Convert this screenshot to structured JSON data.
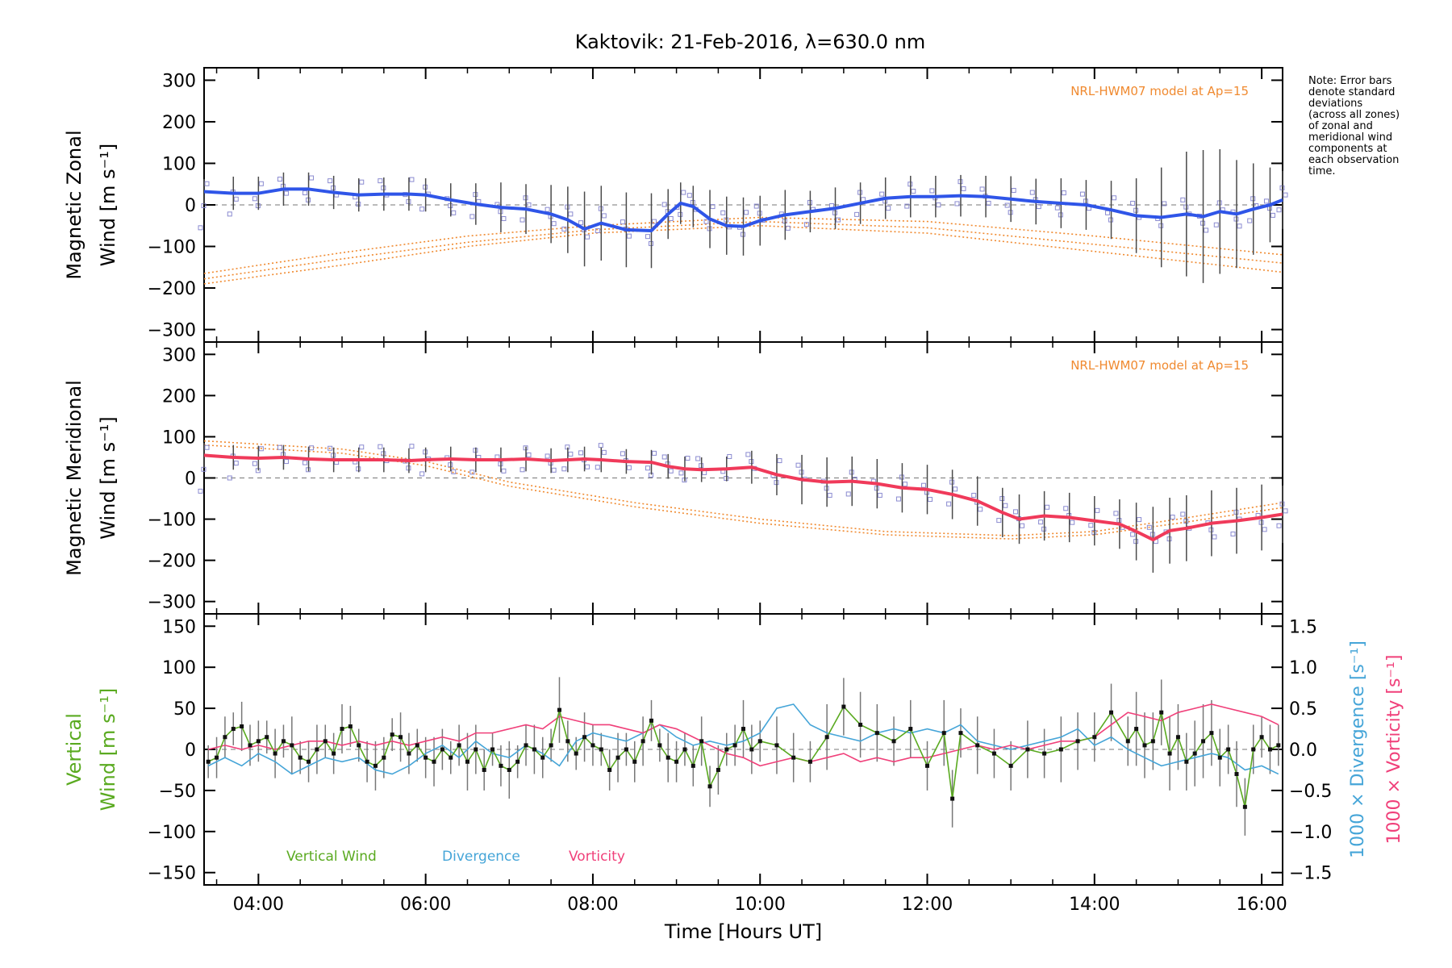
{
  "title": "Kaktovik: 21-Feb-2016, λ=630.0 nm",
  "note_lines": [
    "Note: Error bars",
    "denote standard",
    "deviations",
    "(across all zones)",
    "of zonal and",
    "meridional wind",
    "components at",
    "each observation",
    "time."
  ],
  "colors": {
    "zonal": "#2f55e8",
    "meridional": "#f03a5a",
    "vertical": "#5aaa20",
    "divergence": "#45a5d8",
    "vorticity": "#f0407a",
    "model": "#f08a30",
    "points": "#8a8ad0",
    "errorbar": "#4a4a4a"
  },
  "x_axis": {
    "label": "Time [Hours UT]",
    "range": [
      3.35,
      16.25
    ],
    "ticks": [
      4,
      6,
      8,
      10,
      12,
      14,
      16
    ],
    "tick_labels": [
      "04:00",
      "06:00",
      "08:00",
      "10:00",
      "12:00",
      "14:00",
      "16:00"
    ]
  },
  "chart_data": [
    {
      "type": "line",
      "panel": "zonal",
      "ylabel_line1": "Magnetic Zonal",
      "ylabel_line2": "Wind [m s⁻¹]",
      "model_label": "NRL-HWM07 model at Ap=15",
      "ylim": [
        -330,
        330
      ],
      "yticks": [
        300,
        200,
        100,
        0,
        -100,
        -200,
        -300
      ],
      "series": [
        {
          "x": [
            3.35,
            3.7,
            4.0,
            4.3,
            4.6,
            4.9,
            5.2,
            5.5,
            5.8,
            6.0,
            6.3,
            6.6,
            6.9,
            7.2,
            7.5,
            7.7,
            7.9,
            8.1,
            8.4,
            8.7,
            8.9,
            9.05,
            9.2,
            9.4,
            9.6,
            9.8,
            10.0,
            10.3,
            10.6,
            10.9,
            11.2,
            11.5,
            11.8,
            12.1,
            12.4,
            12.7,
            13.0,
            13.3,
            13.6,
            13.9,
            14.2,
            14.5,
            14.8,
            15.1,
            15.3,
            15.5,
            15.7,
            15.9,
            16.1,
            16.25
          ],
          "y": [
            32,
            28,
            28,
            38,
            38,
            30,
            24,
            26,
            26,
            24,
            12,
            2,
            -6,
            -10,
            -22,
            -36,
            -58,
            -44,
            -60,
            -62,
            -22,
            4,
            -4,
            -34,
            -50,
            -52,
            -38,
            -24,
            -16,
            -8,
            4,
            16,
            20,
            20,
            22,
            20,
            14,
            8,
            4,
            0,
            -12,
            -26,
            -30,
            -22,
            -28,
            -16,
            -22,
            -10,
            0,
            12
          ]
        }
      ],
      "error_halfwidth": [
        30,
        40,
        40,
        40,
        40,
        40,
        40,
        40,
        40,
        40,
        40,
        50,
        60,
        60,
        70,
        80,
        90,
        90,
        90,
        90,
        60,
        50,
        50,
        70,
        70,
        70,
        60,
        60,
        50,
        50,
        50,
        50,
        50,
        50,
        50,
        50,
        55,
        55,
        60,
        60,
        70,
        90,
        120,
        150,
        160,
        150,
        130,
        110,
        90,
        70
      ],
      "model_curves": [
        {
          "x": [
            3.35,
            5.0,
            6.5,
            8.0,
            10.0,
            12.0,
            14.0,
            15.5,
            16.25
          ],
          "y": [
            -165,
            -115,
            -75,
            -50,
            -30,
            -40,
            -75,
            -105,
            -120
          ]
        },
        {
          "x": [
            3.35,
            5.0,
            6.5,
            8.0,
            10.0,
            12.0,
            14.0,
            15.5,
            16.25
          ],
          "y": [
            -178,
            -130,
            -90,
            -60,
            -40,
            -55,
            -95,
            -125,
            -140
          ]
        },
        {
          "x": [
            3.35,
            5.0,
            6.5,
            8.0,
            10.0,
            12.0,
            14.0,
            15.5,
            16.25
          ],
          "y": [
            -190,
            -145,
            -100,
            -68,
            -50,
            -68,
            -112,
            -145,
            -162
          ]
        }
      ]
    },
    {
      "type": "line",
      "panel": "meridional",
      "ylabel_line1": "Magnetic Meridional",
      "ylabel_line2": "Wind [m s⁻¹]",
      "model_label": "NRL-HWM07 model at Ap=15",
      "ylim": [
        -330,
        330
      ],
      "yticks": [
        300,
        200,
        100,
        0,
        -100,
        -200,
        -300
      ],
      "series": [
        {
          "x": [
            3.35,
            3.7,
            4.0,
            4.3,
            4.6,
            4.9,
            5.2,
            5.5,
            5.8,
            6.0,
            6.3,
            6.6,
            6.9,
            7.2,
            7.5,
            7.7,
            7.9,
            8.1,
            8.4,
            8.7,
            8.9,
            9.1,
            9.3,
            9.6,
            9.9,
            10.2,
            10.5,
            10.8,
            11.1,
            11.4,
            11.7,
            12.0,
            12.3,
            12.6,
            12.9,
            13.1,
            13.4,
            13.7,
            14.0,
            14.3,
            14.5,
            14.7,
            14.9,
            15.1,
            15.4,
            15.7,
            16.0,
            16.25
          ],
          "y": [
            55,
            50,
            48,
            50,
            46,
            44,
            44,
            44,
            42,
            44,
            46,
            44,
            44,
            46,
            42,
            44,
            46,
            44,
            40,
            38,
            28,
            22,
            20,
            22,
            26,
            8,
            -4,
            -10,
            -8,
            -14,
            -24,
            -28,
            -40,
            -56,
            -84,
            -100,
            -92,
            -96,
            -104,
            -112,
            -130,
            -150,
            -128,
            -122,
            -110,
            -104,
            -96,
            -88
          ]
        }
      ],
      "error_halfwidth": [
        30,
        30,
        30,
        30,
        30,
        30,
        30,
        30,
        30,
        30,
        30,
        30,
        30,
        30,
        30,
        30,
        30,
        30,
        30,
        30,
        30,
        30,
        30,
        30,
        40,
        50,
        60,
        60,
        60,
        60,
        60,
        60,
        60,
        60,
        60,
        60,
        60,
        60,
        60,
        60,
        70,
        80,
        80,
        80,
        80,
        80,
        80,
        70
      ],
      "model_curves": [
        {
          "x": [
            3.35,
            5.0,
            6.0,
            7.0,
            8.5,
            10.0,
            11.5,
            13.0,
            14.0,
            15.0,
            16.25
          ],
          "y": [
            90,
            70,
            40,
            -10,
            -60,
            -100,
            -130,
            -140,
            -130,
            -100,
            -60
          ]
        },
        {
          "x": [
            3.35,
            5.0,
            6.0,
            7.0,
            8.5,
            10.0,
            11.5,
            13.0,
            14.0,
            15.0,
            16.25
          ],
          "y": [
            80,
            60,
            30,
            -20,
            -70,
            -110,
            -138,
            -148,
            -138,
            -110,
            -72
          ]
        }
      ]
    },
    {
      "type": "line",
      "panel": "vertical",
      "ylabel_line1": "Vertical",
      "ylabel_line2": "Wind [m s⁻¹]",
      "y2label_divergence": "1000 × Divergence [s⁻¹]",
      "y2label_vorticity": "1000 × Vorticity [s⁻¹]",
      "ylim": [
        -165,
        165
      ],
      "yticks": [
        150,
        100,
        50,
        0,
        -50,
        -100,
        -150
      ],
      "y2lim": [
        -1.65,
        1.65
      ],
      "y2ticks": [
        1.5,
        1.0,
        0.5,
        0.0,
        -0.5,
        -1.0,
        -1.5
      ],
      "y2tick_labels": [
        "1.5",
        "1.0",
        "0.5",
        "0.0",
        "−0.5",
        "−1.0",
        "−1.5"
      ],
      "legend": [
        "Vertical Wind",
        "Divergence",
        "Vorticity"
      ],
      "series": [
        {
          "name": "Vertical Wind",
          "x": [
            3.4,
            3.5,
            3.6,
            3.7,
            3.8,
            3.9,
            4.0,
            4.1,
            4.2,
            4.3,
            4.4,
            4.5,
            4.6,
            4.7,
            4.8,
            4.9,
            5.0,
            5.1,
            5.2,
            5.3,
            5.4,
            5.5,
            5.6,
            5.7,
            5.8,
            5.9,
            6.0,
            6.1,
            6.2,
            6.3,
            6.4,
            6.5,
            6.6,
            6.7,
            6.8,
            6.9,
            7.0,
            7.1,
            7.2,
            7.3,
            7.4,
            7.5,
            7.6,
            7.7,
            7.8,
            7.9,
            8.0,
            8.1,
            8.2,
            8.3,
            8.4,
            8.5,
            8.6,
            8.7,
            8.8,
            8.9,
            9.0,
            9.1,
            9.2,
            9.3,
            9.4,
            9.5,
            9.6,
            9.7,
            9.8,
            9.9,
            10.0,
            10.2,
            10.4,
            10.6,
            10.8,
            11.0,
            11.2,
            11.4,
            11.6,
            11.8,
            12.0,
            12.2,
            12.3,
            12.4,
            12.6,
            12.8,
            13.0,
            13.2,
            13.4,
            13.6,
            13.8,
            14.0,
            14.2,
            14.4,
            14.5,
            14.6,
            14.7,
            14.8,
            14.9,
            15.0,
            15.1,
            15.2,
            15.3,
            15.4,
            15.5,
            15.6,
            15.7,
            15.8,
            15.9,
            16.0,
            16.1,
            16.2
          ],
          "y": [
            -15,
            -10,
            15,
            25,
            28,
            5,
            10,
            15,
            -5,
            10,
            5,
            -10,
            -15,
            0,
            10,
            -5,
            25,
            28,
            5,
            -15,
            -20,
            -10,
            18,
            15,
            -5,
            5,
            -10,
            -15,
            0,
            -10,
            5,
            -15,
            0,
            -25,
            0,
            -20,
            -25,
            -15,
            5,
            0,
            -10,
            5,
            48,
            10,
            -5,
            15,
            5,
            0,
            -25,
            -10,
            0,
            -15,
            10,
            35,
            5,
            -10,
            -15,
            0,
            -20,
            10,
            -45,
            -25,
            0,
            5,
            25,
            0,
            10,
            5,
            -10,
            -15,
            15,
            52,
            30,
            20,
            10,
            25,
            -20,
            20,
            -60,
            20,
            5,
            -5,
            -20,
            0,
            -5,
            0,
            10,
            15,
            45,
            10,
            25,
            5,
            10,
            45,
            -5,
            15,
            -15,
            -5,
            10,
            20,
            -10,
            0,
            -30,
            -70,
            0,
            15,
            0,
            5
          ]
        },
        {
          "name": "Divergence",
          "x": [
            3.4,
            3.6,
            3.8,
            4.0,
            4.2,
            4.4,
            4.6,
            4.8,
            5.0,
            5.2,
            5.4,
            5.6,
            5.8,
            6.0,
            6.2,
            6.4,
            6.6,
            6.8,
            7.0,
            7.2,
            7.4,
            7.6,
            7.8,
            8.0,
            8.2,
            8.4,
            8.6,
            8.8,
            9.0,
            9.2,
            9.4,
            9.6,
            9.8,
            10.0,
            10.2,
            10.4,
            10.6,
            10.8,
            11.0,
            11.2,
            11.4,
            11.6,
            11.8,
            12.0,
            12.2,
            12.4,
            12.6,
            12.8,
            13.0,
            13.2,
            13.4,
            13.6,
            13.8,
            14.0,
            14.2,
            14.4,
            14.6,
            14.8,
            15.0,
            15.2,
            15.4,
            15.6,
            15.8,
            16.0,
            16.2
          ],
          "y": [
            -0.2,
            -0.1,
            -0.2,
            -0.05,
            -0.15,
            -0.3,
            -0.2,
            -0.1,
            -0.15,
            -0.1,
            -0.25,
            -0.3,
            -0.2,
            -0.05,
            0.05,
            -0.1,
            0.1,
            -0.05,
            -0.1,
            0.05,
            -0.05,
            -0.2,
            0.1,
            0.2,
            0.15,
            0.1,
            0.2,
            0.3,
            0.15,
            0.05,
            0.1,
            0.05,
            0.1,
            0.2,
            0.5,
            0.55,
            0.3,
            0.2,
            0.15,
            0.1,
            0.2,
            0.25,
            0.2,
            0.25,
            0.2,
            0.3,
            0.1,
            0.05,
            0.0,
            0.05,
            0.1,
            0.15,
            0.25,
            0.05,
            0.15,
            0.0,
            -0.1,
            -0.2,
            -0.15,
            -0.1,
            -0.05,
            -0.1,
            -0.25,
            -0.2,
            -0.3
          ]
        },
        {
          "name": "Vorticity",
          "x": [
            3.4,
            3.6,
            3.8,
            4.0,
            4.2,
            4.4,
            4.6,
            4.8,
            5.0,
            5.2,
            5.4,
            5.6,
            5.8,
            6.0,
            6.2,
            6.4,
            6.6,
            6.8,
            7.0,
            7.2,
            7.4,
            7.6,
            7.8,
            8.0,
            8.2,
            8.4,
            8.6,
            8.8,
            9.0,
            9.2,
            9.4,
            9.6,
            9.8,
            10.0,
            10.2,
            10.4,
            10.6,
            10.8,
            11.0,
            11.2,
            11.4,
            11.6,
            11.8,
            12.0,
            12.2,
            12.4,
            12.6,
            12.8,
            13.0,
            13.2,
            13.4,
            13.6,
            13.8,
            14.0,
            14.2,
            14.4,
            14.6,
            14.8,
            15.0,
            15.2,
            15.4,
            15.6,
            15.8,
            16.0,
            16.2
          ],
          "y": [
            0.0,
            0.05,
            0.0,
            0.05,
            0.0,
            0.05,
            0.1,
            0.1,
            0.05,
            0.1,
            0.05,
            0.1,
            0.05,
            0.1,
            0.15,
            0.1,
            0.2,
            0.2,
            0.25,
            0.3,
            0.25,
            0.4,
            0.35,
            0.3,
            0.3,
            0.25,
            0.2,
            0.3,
            0.25,
            0.15,
            0.05,
            -0.05,
            -0.1,
            -0.2,
            -0.15,
            -0.1,
            -0.15,
            -0.1,
            -0.05,
            -0.15,
            -0.1,
            -0.15,
            -0.1,
            -0.1,
            -0.05,
            0.0,
            0.05,
            0.0,
            0.05,
            0.0,
            0.05,
            0.1,
            0.1,
            0.15,
            0.3,
            0.45,
            0.4,
            0.35,
            0.45,
            0.5,
            0.55,
            0.5,
            0.45,
            0.4,
            0.3
          ]
        }
      ],
      "error_halfwidth": [
        20,
        25,
        25,
        20,
        30,
        25,
        25,
        20,
        30,
        20,
        35,
        20,
        25,
        30,
        20,
        25,
        30,
        25,
        20,
        25,
        30,
        25,
        20,
        30,
        25,
        20,
        25,
        30,
        25,
        20,
        25,
        35,
        30,
        25,
        20,
        25,
        35,
        20,
        25,
        30,
        25,
        20,
        40,
        25,
        20,
        30,
        25,
        20,
        25,
        30,
        20,
        25,
        30,
        25,
        20,
        30,
        25,
        20,
        25,
        30,
        25,
        30,
        20,
        25,
        35,
        30,
        25,
        35,
        30,
        25,
        40,
        35,
        40,
        35,
        30,
        35,
        30,
        40,
        35,
        30,
        35,
        30,
        30,
        35,
        30,
        40,
        35,
        30,
        35,
        30,
        45,
        40,
        35,
        40,
        45,
        40,
        35,
        40,
        45,
        40,
        35,
        30,
        40,
        35,
        30,
        25,
        30,
        25
      ]
    }
  ]
}
